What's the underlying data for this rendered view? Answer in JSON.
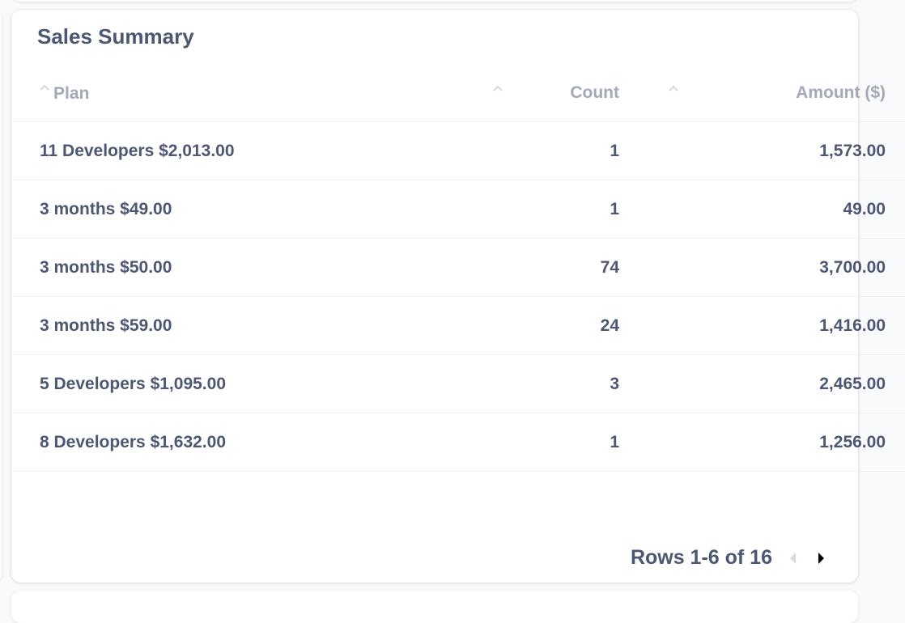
{
  "card": {
    "title": "Sales Summary"
  },
  "table": {
    "columns": [
      {
        "key": "plan",
        "label": "Plan"
      },
      {
        "key": "count",
        "label": "Count"
      },
      {
        "key": "amount",
        "label": "Amount ($)"
      }
    ],
    "rows": [
      {
        "plan": "11 Developers $2,013.00",
        "count": "1",
        "amount": "1,573.00"
      },
      {
        "plan": "3 months $49.00",
        "count": "1",
        "amount": "49.00"
      },
      {
        "plan": "3 months $50.00",
        "count": "74",
        "amount": "3,700.00"
      },
      {
        "plan": "3 months $59.00",
        "count": "24",
        "amount": "1,416.00"
      },
      {
        "plan": "5 Developers $1,095.00",
        "count": "3",
        "amount": "2,465.00"
      },
      {
        "plan": "8 Developers $1,632.00",
        "count": "1",
        "amount": "1,256.00"
      }
    ]
  },
  "pagination": {
    "label": "Rows 1-6 of 16",
    "prev_icon": "chevron-left-icon",
    "next_icon": "chevron-right-icon"
  },
  "colors": {
    "text": "#4c5773",
    "header_text": "#a3a9b7",
    "disabled": "#d5d9e0",
    "active_arrow": "#000000"
  }
}
